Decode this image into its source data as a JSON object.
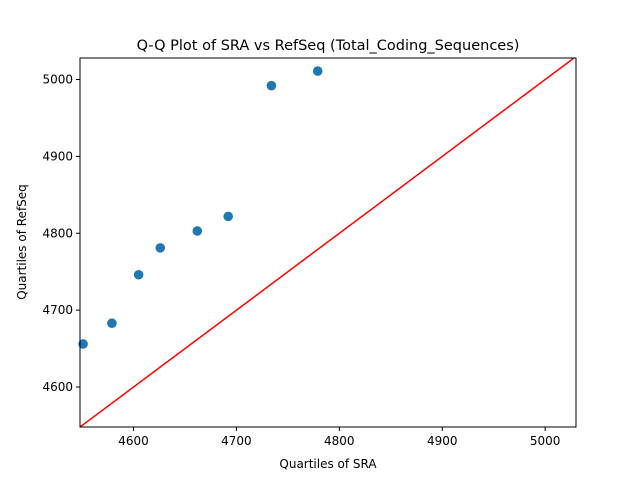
{
  "chart_data": {
    "type": "scatter",
    "title": "Q-Q Plot of SRA vs RefSeq (Total_Coding_Sequences)",
    "xlabel": "Quartiles of SRA",
    "ylabel": "Quartiles of RefSeq",
    "xlim": [
      4548,
      5030
    ],
    "ylim": [
      4548,
      5028
    ],
    "xticks": [
      4600,
      4700,
      4800,
      4900,
      5000
    ],
    "yticks": [
      4600,
      4700,
      4800,
      4900,
      5000
    ],
    "grid": false,
    "series": [
      {
        "color": "#1f77b4",
        "x": [
          4551,
          4579,
          4605,
          4626,
          4662,
          4692,
          4734,
          4779
        ],
        "y": [
          4656,
          4683,
          4746,
          4781,
          4803,
          4822,
          4992,
          5011
        ]
      }
    ],
    "reference_line": {
      "color": "#ff0000",
      "x": [
        4548,
        5030
      ],
      "y": [
        4548,
        5030
      ]
    }
  }
}
